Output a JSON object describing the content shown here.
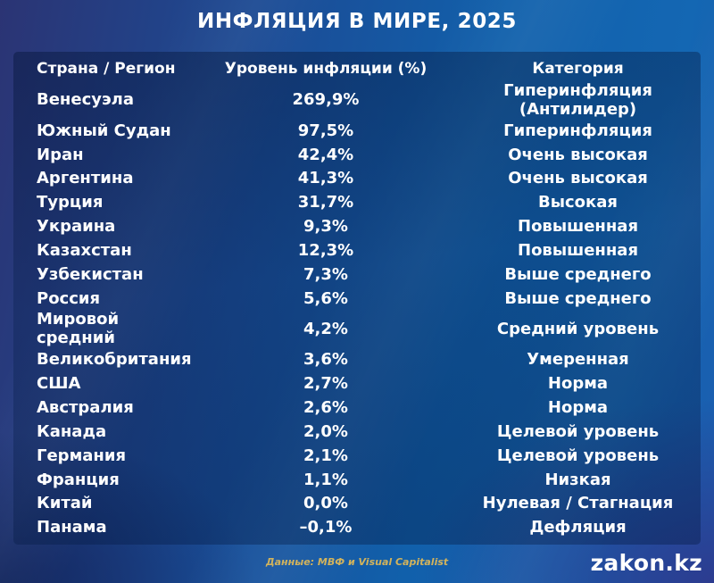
{
  "title": "ИНФЛЯЦИЯ В МИРЕ, 2025",
  "chart_data": {
    "type": "table",
    "title": "ИНФЛЯЦИЯ В МИРЕ, 2025",
    "columns": [
      "Страна / Регион",
      "Уровень инфляции (%)",
      "Категория"
    ],
    "rows": [
      [
        "Венесуэла",
        "269,9%",
        "Гиперинфляция (Антилидер)"
      ],
      [
        "Южный Судан",
        "97,5%",
        "Гиперинфляция"
      ],
      [
        "Иран",
        "42,4%",
        "Очень высокая"
      ],
      [
        "Аргентина",
        "41,3%",
        "Очень высокая"
      ],
      [
        "Турция",
        "31,7%",
        "Высокая"
      ],
      [
        "Украина",
        "9,3%",
        "Повышенная"
      ],
      [
        "Казахстан",
        "12,3%",
        "Повышенная"
      ],
      [
        "Узбекистан",
        "7,3%",
        "Выше среднего"
      ],
      [
        "Россия",
        "5,6%",
        "Выше среднего"
      ],
      [
        "Мировой средний",
        "4,2%",
        "Средний уровень"
      ],
      [
        "Великобритания",
        "3,6%",
        "Умеренная"
      ],
      [
        "США",
        "2,7%",
        "Норма"
      ],
      [
        "Австралия",
        "2,6%",
        "Норма"
      ],
      [
        "Канада",
        "2,0%",
        "Целевой уровень"
      ],
      [
        "Германия",
        "2,1%",
        "Целевой уровень"
      ],
      [
        "Франция",
        "1,1%",
        "Низкая"
      ],
      [
        "Китай",
        "0,0%",
        "Нулевая / Стагнация"
      ],
      [
        "Панама",
        "–0,1%",
        "Дефляция"
      ]
    ],
    "inflation_values_numeric": [
      269.9,
      97.5,
      42.4,
      41.3,
      31.7,
      9.3,
      12.3,
      7.3,
      5.6,
      4.2,
      3.6,
      2.7,
      2.6,
      2.0,
      2.1,
      1.1,
      0.0,
      -0.1
    ]
  },
  "footer": {
    "source": "Данные: МВФ и Visual Capitalist",
    "brand": "zakon.kz"
  },
  "colors": {
    "background_top_left": "#2b3474",
    "background_right": "#1467b3",
    "background_bottom_right": "#2d3a8e",
    "panel_overlay_dark": "#041C46",
    "text": "#ffffff",
    "source_text": "#d2b35c"
  }
}
